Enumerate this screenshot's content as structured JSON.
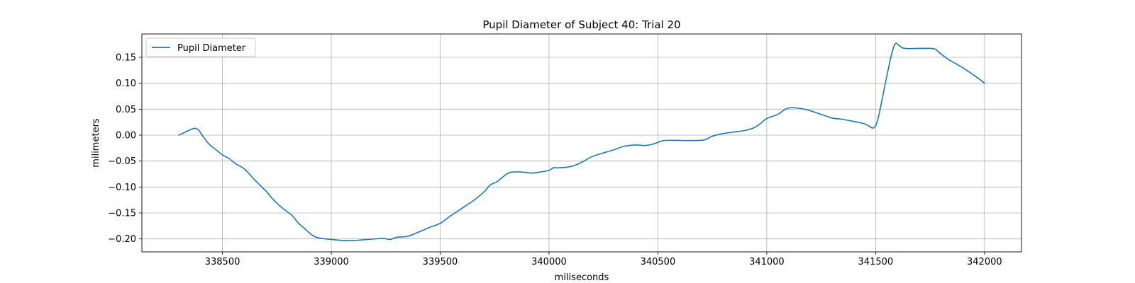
{
  "chart_data": {
    "type": "line",
    "title": "Pupil Diameter of Subject 40: Trial 20",
    "xlabel": "miliseconds",
    "ylabel": "milimeters",
    "xlim": [
      338130,
      342170
    ],
    "ylim": [
      -0.225,
      0.195
    ],
    "xticks": [
      338500,
      339000,
      339500,
      340000,
      340500,
      341000,
      341500,
      342000
    ],
    "yticks": [
      -0.2,
      -0.15,
      -0.1,
      -0.05,
      0.0,
      0.05,
      0.1,
      0.15
    ],
    "xtick_labels": [
      "338500",
      "339000",
      "339500",
      "340000",
      "340500",
      "341000",
      "341500",
      "342000"
    ],
    "ytick_labels": [
      "−0.20",
      "−0.15",
      "−0.10",
      "−0.05",
      "0.00",
      "0.05",
      "0.10",
      "0.15"
    ],
    "grid": true,
    "legend_position": "upper-left",
    "color": "#1f77b4",
    "series": [
      {
        "name": "Pupil Diameter",
        "x": [
          338300,
          338340,
          338370,
          338390,
          338410,
          338440,
          338470,
          338500,
          338530,
          338560,
          338600,
          338650,
          338700,
          338740,
          338780,
          338820,
          338850,
          338880,
          338910,
          338940,
          339000,
          339050,
          339090,
          339110,
          339140,
          339200,
          339240,
          339270,
          339300,
          339350,
          339400,
          339450,
          339500,
          339550,
          339600,
          339650,
          339700,
          339730,
          339760,
          339790,
          339820,
          339870,
          339920,
          339960,
          340000,
          340020,
          340040,
          340080,
          340120,
          340160,
          340200,
          340260,
          340300,
          340350,
          340400,
          340440,
          340480,
          340520,
          340560,
          340700,
          340750,
          340800,
          340850,
          340900,
          340940,
          340970,
          341000,
          341050,
          341090,
          341120,
          341160,
          341200,
          341250,
          341300,
          341340,
          341380,
          341430,
          341460,
          341490,
          341510,
          341540,
          341570,
          341590,
          341610,
          341640,
          341760,
          341790,
          341830,
          341900,
          341970,
          342000
        ],
        "y": [
          0.0,
          0.008,
          0.013,
          0.01,
          -0.002,
          -0.018,
          -0.028,
          -0.038,
          -0.045,
          -0.055,
          -0.065,
          -0.087,
          -0.108,
          -0.127,
          -0.142,
          -0.155,
          -0.17,
          -0.181,
          -0.192,
          -0.198,
          -0.201,
          -0.203,
          -0.203,
          -0.203,
          -0.202,
          -0.2,
          -0.199,
          -0.201,
          -0.197,
          -0.195,
          -0.187,
          -0.178,
          -0.17,
          -0.155,
          -0.141,
          -0.127,
          -0.11,
          -0.096,
          -0.09,
          -0.08,
          -0.072,
          -0.071,
          -0.073,
          -0.071,
          -0.068,
          -0.063,
          -0.063,
          -0.062,
          -0.058,
          -0.05,
          -0.041,
          -0.033,
          -0.028,
          -0.021,
          -0.019,
          -0.02,
          -0.017,
          -0.011,
          -0.01,
          -0.01,
          -0.002,
          0.003,
          0.006,
          0.009,
          0.014,
          0.022,
          0.032,
          0.04,
          0.051,
          0.053,
          0.051,
          0.047,
          0.04,
          0.033,
          0.031,
          0.028,
          0.024,
          0.02,
          0.014,
          0.03,
          0.09,
          0.15,
          0.176,
          0.172,
          0.167,
          0.167,
          0.16,
          0.147,
          0.13,
          0.11,
          0.1
        ]
      }
    ]
  }
}
